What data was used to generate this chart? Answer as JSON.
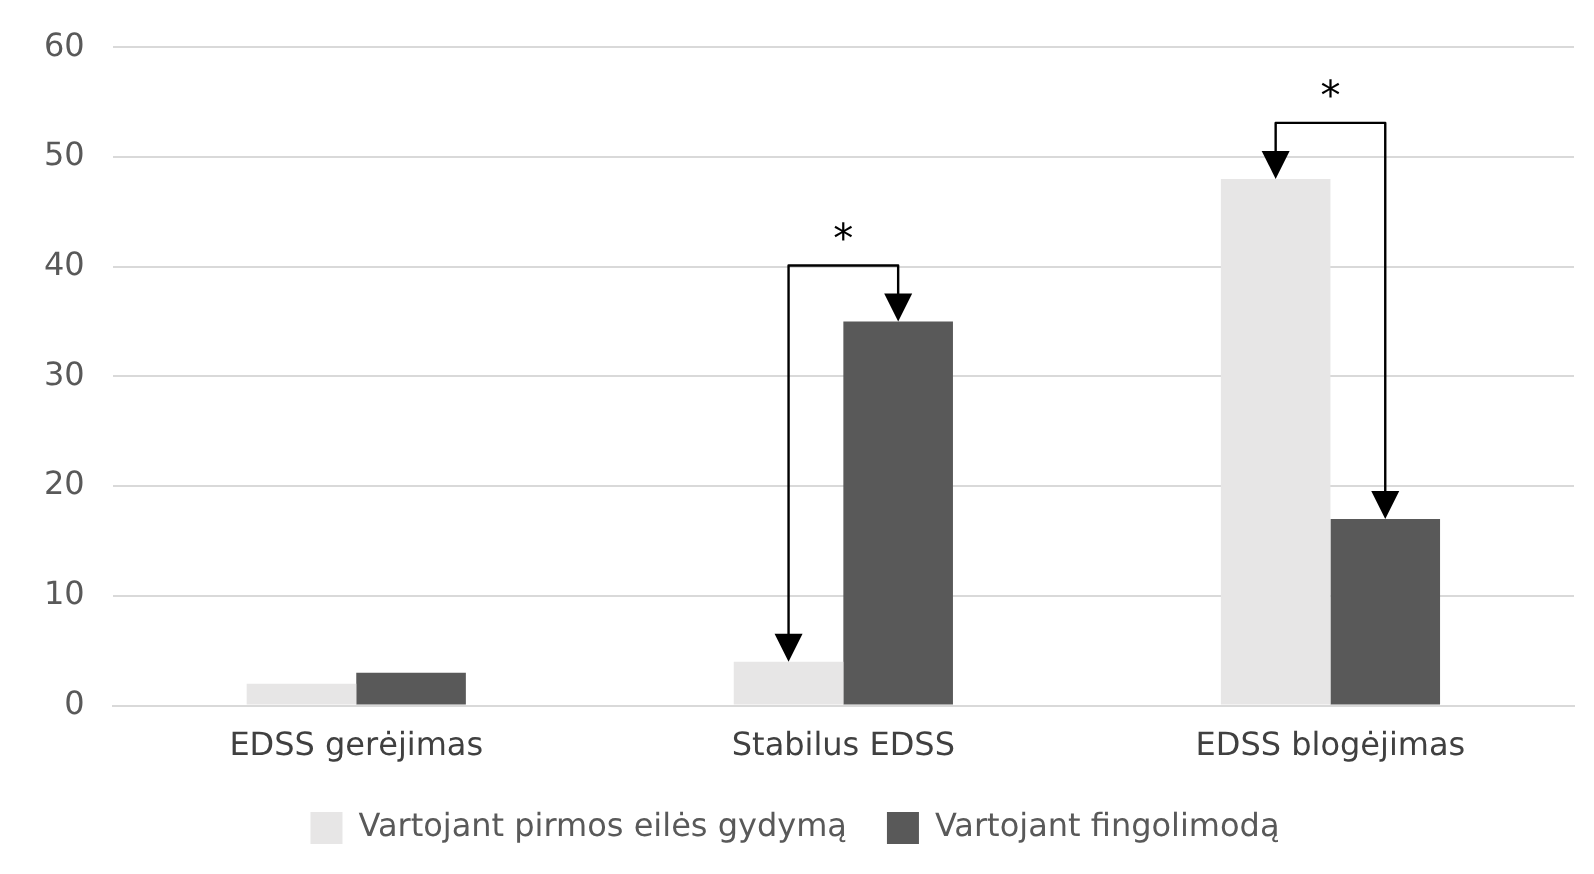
{
  "chart_data": {
    "type": "bar",
    "categories": [
      "EDSS gerėjimas",
      "Stabilus EDSS",
      "EDSS blogėjimas"
    ],
    "series": [
      {
        "name": "Vartojant pirmos eilės gydymą",
        "color": "#e7e6e6",
        "values": [
          2,
          4,
          48
        ]
      },
      {
        "name": "Vartojant fingolimodą",
        "color": "#595959",
        "values": [
          3,
          35,
          17
        ]
      }
    ],
    "ylim": [
      0,
      60
    ],
    "yticks": [
      0,
      10,
      20,
      30,
      40,
      50,
      60
    ],
    "grid": "y",
    "legend": "bottom",
    "annotations": [
      "*",
      "*"
    ]
  }
}
